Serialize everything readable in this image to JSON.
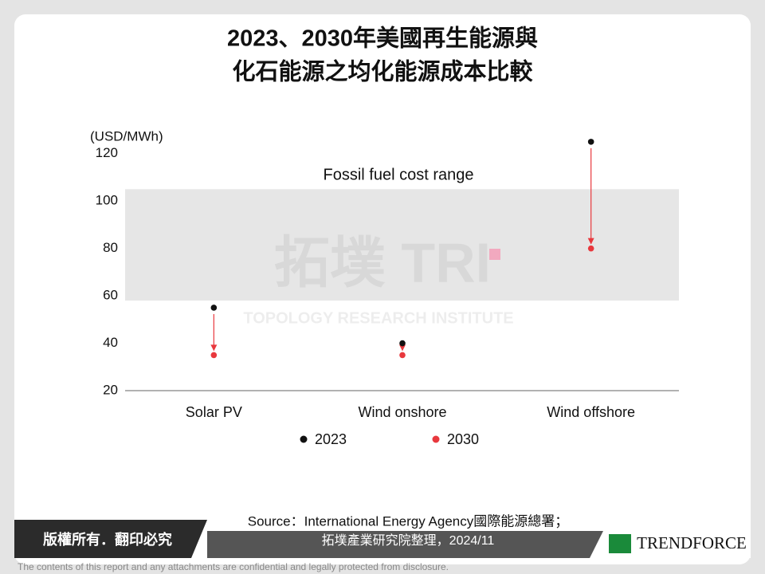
{
  "header": {
    "title_lines": [
      "2023、2030年美國再生能源與",
      "化石能源之均化能源成本比較"
    ]
  },
  "chart_data": {
    "type": "dot",
    "y_label": "(USD/MWh)",
    "categories": [
      "Solar PV",
      "Wind onshore",
      "Wind offshore"
    ],
    "series": [
      {
        "name": "2023",
        "color": "#111111",
        "values": [
          55,
          40,
          125
        ]
      },
      {
        "name": "2030",
        "color": "#e8383d",
        "values": [
          35,
          35,
          80
        ]
      }
    ],
    "ylim": [
      20,
      130
    ],
    "yticks": [
      20,
      40,
      60,
      80,
      100,
      120
    ],
    "band": {
      "label": "Fossil fuel cost range",
      "range": [
        58,
        105
      ],
      "color": "#e6e6e6"
    },
    "arrow_color": "#e8383d"
  },
  "watermark": {
    "logo": "拓墣 TRI",
    "name": "TOPOLOGY RESEARCH INSTITUTE"
  },
  "footer": {
    "copyright": "版權所有．翻印必究",
    "source_lines": [
      "Source：International Energy Agency國際能源總署；",
      "拓墣產業研究院整理，2024/11"
    ],
    "brand": "TRENDFORCE",
    "disclaimer": "The contents of this report and any attachments are confidential and legally protected from disclosure."
  }
}
